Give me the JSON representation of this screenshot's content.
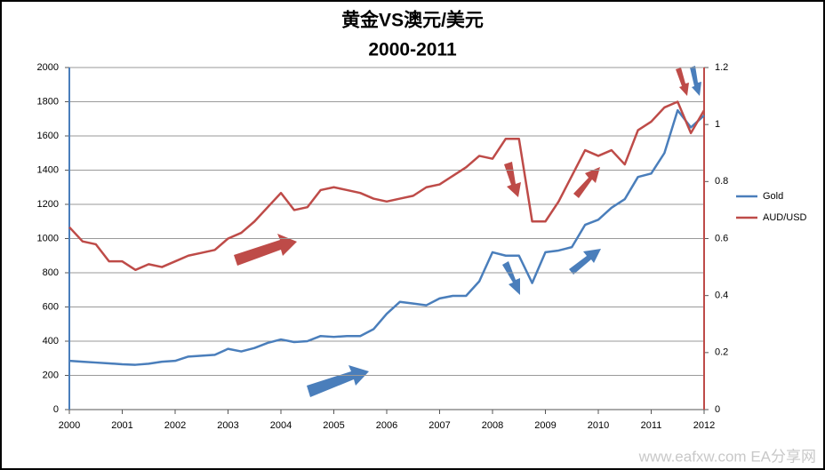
{
  "chart_data": {
    "type": "line",
    "title": "黄金VS澳元/美元",
    "subtitle": "2000-2011",
    "watermark": "www.eafxw.com  EA分享网",
    "x": [
      2000,
      2000.25,
      2000.5,
      2000.75,
      2001,
      2001.25,
      2001.5,
      2001.75,
      2002,
      2002.25,
      2002.5,
      2002.75,
      2003,
      2003.25,
      2003.5,
      2003.75,
      2004,
      2004.25,
      2004.5,
      2004.75,
      2005,
      2005.25,
      2005.5,
      2005.75,
      2006,
      2006.25,
      2006.5,
      2006.75,
      2007,
      2007.25,
      2007.5,
      2007.75,
      2008,
      2008.25,
      2008.5,
      2008.75,
      2009,
      2009.25,
      2009.5,
      2009.75,
      2010,
      2010.25,
      2010.5,
      2010.75,
      2011,
      2011.25,
      2011.5,
      2011.75,
      2012
    ],
    "series": [
      {
        "name": "Gold",
        "color": "#4a7ebb",
        "axis": "y",
        "values": [
          285,
          280,
          275,
          270,
          265,
          262,
          268,
          280,
          285,
          310,
          315,
          320,
          355,
          340,
          360,
          390,
          410,
          395,
          400,
          430,
          425,
          430,
          430,
          470,
          560,
          630,
          620,
          610,
          650,
          665,
          665,
          750,
          920,
          900,
          900,
          740,
          920,
          930,
          950,
          1080,
          1110,
          1180,
          1230,
          1360,
          1380,
          1500,
          1750,
          1650,
          1720
        ]
      },
      {
        "name": "AUD/USD",
        "color": "#be4b48",
        "axis": "y2",
        "values": [
          0.64,
          0.59,
          0.58,
          0.52,
          0.52,
          0.49,
          0.51,
          0.5,
          0.52,
          0.54,
          0.55,
          0.56,
          0.6,
          0.62,
          0.66,
          0.71,
          0.76,
          0.7,
          0.71,
          0.77,
          0.78,
          0.77,
          0.76,
          0.74,
          0.73,
          0.74,
          0.75,
          0.78,
          0.79,
          0.82,
          0.85,
          0.89,
          0.88,
          0.95,
          0.95,
          0.66,
          0.66,
          0.73,
          0.82,
          0.91,
          0.89,
          0.91,
          0.86,
          0.98,
          1.01,
          1.06,
          1.08,
          0.97,
          1.05
        ]
      }
    ],
    "xlim": [
      2000,
      2012
    ],
    "xticks": [
      2000,
      2001,
      2002,
      2003,
      2004,
      2005,
      2006,
      2007,
      2008,
      2009,
      2010,
      2011,
      2012
    ],
    "ylim": [
      0,
      2000
    ],
    "yticks": [
      0,
      200,
      400,
      600,
      800,
      1000,
      1200,
      1400,
      1600,
      1800,
      2000
    ],
    "y2lim": [
      0,
      1.2
    ],
    "y2ticks": [
      0,
      0.2,
      0.4,
      0.6,
      0.8,
      1,
      1.2
    ],
    "grid": true,
    "legend": "right"
  }
}
